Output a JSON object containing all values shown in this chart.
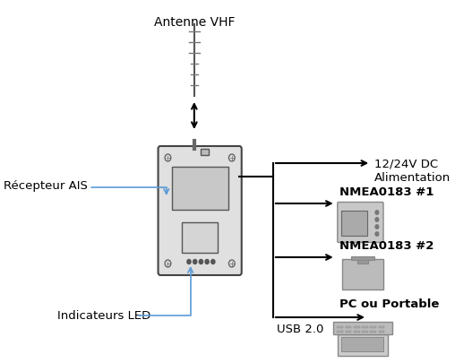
{
  "background_color": "#ffffff",
  "labels": {
    "antenna": "Antenne VHF",
    "power": "12/24V DC\nAlimentation",
    "nmea1": "NMEA0183 #1",
    "nmea2": "NMEA0183 #2",
    "pc": "PC ou Portable",
    "usb": "USB 2.0",
    "receiver": "Récepteur AIS",
    "led": "Indicateurs LED"
  },
  "line_color": "#000000",
  "device_color": "#888888",
  "label_line_color": "#5b9bd5",
  "text_color": "#000000",
  "fontsize_main": 10,
  "fontsize_label": 9.5
}
